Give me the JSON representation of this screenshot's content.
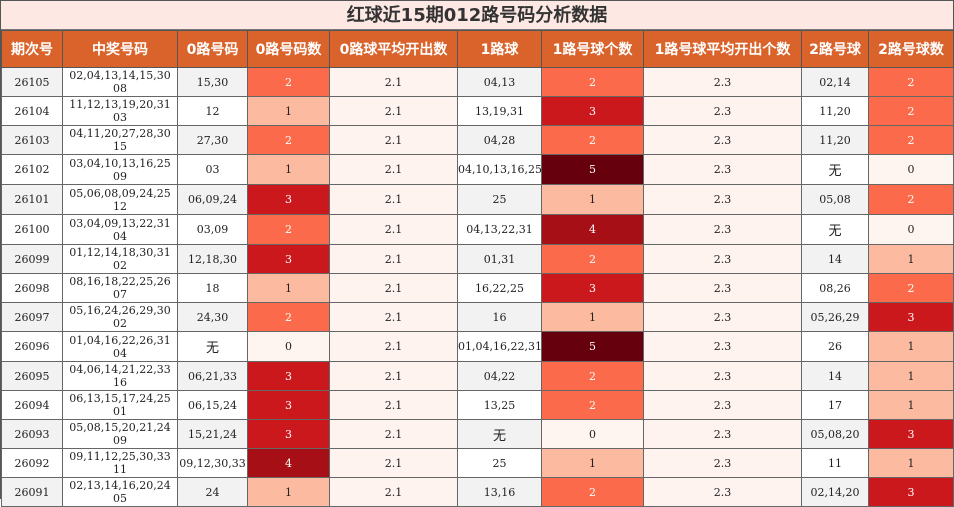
{
  "title": "红球近15期012路号码分析数据",
  "headers": [
    "期次号",
    "中奖号码",
    "0路号码",
    "0路号码数",
    "0路球平均开出数",
    "1路球",
    "1路号球个数",
    "1路号球平均开出个数",
    "2路号球",
    "2路号球数"
  ],
  "colors": {
    "header_bg": "#d9632a",
    "title_bg": "#fde8e4",
    "heat": [
      "#fff5f0",
      "#fcbba1",
      "#fb6a4a",
      "#cb181d",
      "#a50f15",
      "#67000d"
    ]
  },
  "rows": [
    {
      "period": "26105",
      "numbers": "02,04,13,14,15,30 08",
      "r0": "15,30",
      "c0": "2",
      "a0": "2.1",
      "r1": "04,13",
      "c1": "2",
      "a1": "2.3",
      "r2": "02,14",
      "c2": "2"
    },
    {
      "period": "26104",
      "numbers": "11,12,13,19,20,31 03",
      "r0": "12",
      "c0": "1",
      "a0": "2.1",
      "r1": "13,19,31",
      "c1": "3",
      "a1": "2.3",
      "r2": "11,20",
      "c2": "2"
    },
    {
      "period": "26103",
      "numbers": "04,11,20,27,28,30 15",
      "r0": "27,30",
      "c0": "2",
      "a0": "2.1",
      "r1": "04,28",
      "c1": "2",
      "a1": "2.3",
      "r2": "11,20",
      "c2": "2"
    },
    {
      "period": "26102",
      "numbers": "03,04,10,13,16,25 09",
      "r0": "03",
      "c0": "1",
      "a0": "2.1",
      "r1": "04,10,13,16,25",
      "c1": "5",
      "a1": "2.3",
      "r2": "无",
      "c2": "0"
    },
    {
      "period": "26101",
      "numbers": "05,06,08,09,24,25 12",
      "r0": "06,09,24",
      "c0": "3",
      "a0": "2.1",
      "r1": "25",
      "c1": "1",
      "a1": "2.3",
      "r2": "05,08",
      "c2": "2"
    },
    {
      "period": "26100",
      "numbers": "03,04,09,13,22,31 04",
      "r0": "03,09",
      "c0": "2",
      "a0": "2.1",
      "r1": "04,13,22,31",
      "c1": "4",
      "a1": "2.3",
      "r2": "无",
      "c2": "0"
    },
    {
      "period": "26099",
      "numbers": "01,12,14,18,30,31 02",
      "r0": "12,18,30",
      "c0": "3",
      "a0": "2.1",
      "r1": "01,31",
      "c1": "2",
      "a1": "2.3",
      "r2": "14",
      "c2": "1"
    },
    {
      "period": "26098",
      "numbers": "08,16,18,22,25,26 07",
      "r0": "18",
      "c0": "1",
      "a0": "2.1",
      "r1": "16,22,25",
      "c1": "3",
      "a1": "2.3",
      "r2": "08,26",
      "c2": "2"
    },
    {
      "period": "26097",
      "numbers": "05,16,24,26,29,30 02",
      "r0": "24,30",
      "c0": "2",
      "a0": "2.1",
      "r1": "16",
      "c1": "1",
      "a1": "2.3",
      "r2": "05,26,29",
      "c2": "3"
    },
    {
      "period": "26096",
      "numbers": "01,04,16,22,26,31 04",
      "r0": "无",
      "c0": "0",
      "a0": "2.1",
      "r1": "01,04,16,22,31",
      "c1": "5",
      "a1": "2.3",
      "r2": "26",
      "c2": "1"
    },
    {
      "period": "26095",
      "numbers": "04,06,14,21,22,33 16",
      "r0": "06,21,33",
      "c0": "3",
      "a0": "2.1",
      "r1": "04,22",
      "c1": "2",
      "a1": "2.3",
      "r2": "14",
      "c2": "1"
    },
    {
      "period": "26094",
      "numbers": "06,13,15,17,24,25 01",
      "r0": "06,15,24",
      "c0": "3",
      "a0": "2.1",
      "r1": "13,25",
      "c1": "2",
      "a1": "2.3",
      "r2": "17",
      "c2": "1"
    },
    {
      "period": "26093",
      "numbers": "05,08,15,20,21,24 09",
      "r0": "15,21,24",
      "c0": "3",
      "a0": "2.1",
      "r1": "无",
      "c1": "0",
      "a1": "2.3",
      "r2": "05,08,20",
      "c2": "3"
    },
    {
      "period": "26092",
      "numbers": "09,11,12,25,30,33 11",
      "r0": "09,12,30,33",
      "c0": "4",
      "a0": "2.1",
      "r1": "25",
      "c1": "1",
      "a1": "2.3",
      "r2": "11",
      "c2": "1"
    },
    {
      "period": "26091",
      "numbers": "02,13,14,16,20,24 05",
      "r0": "24",
      "c0": "1",
      "a0": "2.1",
      "r1": "13,16",
      "c1": "2",
      "a1": "2.3",
      "r2": "02,14,20",
      "c2": "3"
    }
  ]
}
